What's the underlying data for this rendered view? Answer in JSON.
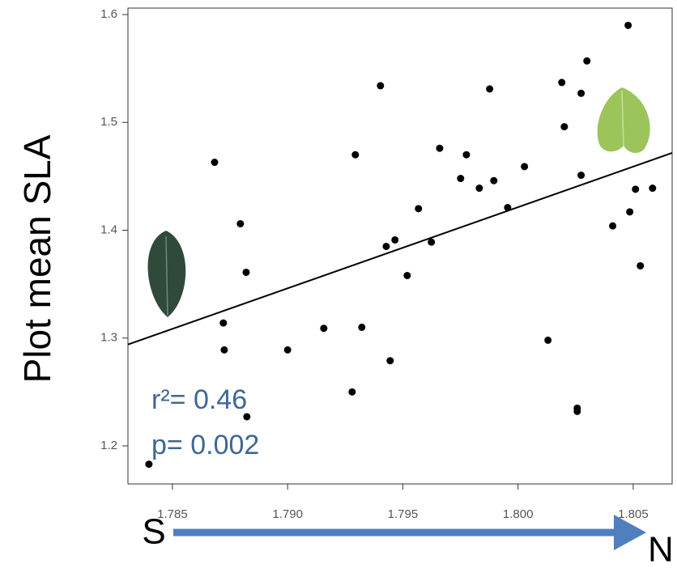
{
  "chart_data": {
    "type": "scatter",
    "y_label": "Plot mean SLA",
    "x": [
      1.78398,
      1.78683,
      1.78721,
      1.78725,
      1.78795,
      1.7882,
      1.78823,
      1.79,
      1.79157,
      1.7928,
      1.79294,
      1.79322,
      1.79403,
      1.79428,
      1.79445,
      1.79466,
      1.79519,
      1.79568,
      1.79624,
      1.7966,
      1.79751,
      1.79776,
      1.79832,
      1.79877,
      1.79895,
      1.79955,
      1.80028,
      1.8013,
      1.8019,
      1.80201,
      1.80257,
      1.80257,
      1.80274,
      1.80274,
      1.80299,
      1.80411,
      1.80478,
      1.80485,
      1.8051,
      1.80531,
      1.80584
    ],
    "values": [
      1.183,
      1.463,
      1.314,
      1.289,
      1.406,
      1.361,
      1.227,
      1.289,
      1.309,
      1.25,
      1.47,
      1.31,
      1.534,
      1.385,
      1.279,
      1.391,
      1.358,
      1.42,
      1.389,
      1.476,
      1.448,
      1.47,
      1.439,
      1.531,
      1.446,
      1.421,
      1.459,
      1.298,
      1.537,
      1.496,
      1.235,
      1.232,
      1.527,
      1.451,
      1.557,
      1.404,
      1.59,
      1.417,
      1.438,
      1.367,
      1.439
    ],
    "color": "#000000",
    "trend_line": {
      "x": [
        1.78307,
        1.80669
      ],
      "y": [
        1.294,
        1.4717
      ],
      "color": "#000000"
    },
    "xlim": [
      1.78307,
      1.80669
    ],
    "ylim": [
      1.1647,
      1.606
    ],
    "xticks": [
      1.785,
      {
        "value": 1.79,
        "label": "1.790"
      },
      1.795,
      {
        "value": 1.8,
        "label": "1.800"
      },
      1.805
    ],
    "yticks": [
      1.2,
      1.3,
      1.4,
      1.5,
      1.6
    ],
    "annotations": [
      "r²= 0.46",
      "p= 0.002"
    ],
    "annotation_color": "#3f6797",
    "direction_labels": [
      "S",
      "N"
    ],
    "arrow_color": "#4f7fbf"
  }
}
